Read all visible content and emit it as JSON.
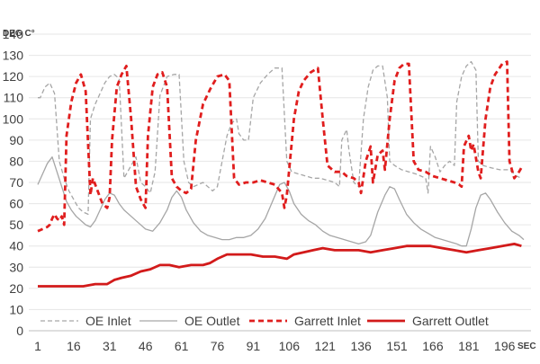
{
  "chart_data": {
    "type": "line",
    "title": "",
    "ylabel": "DEG C°",
    "xlabel": "SEC",
    "ylim": [
      0,
      140
    ],
    "yticks": [
      0,
      10,
      20,
      30,
      40,
      50,
      60,
      70,
      80,
      90,
      100,
      110,
      120,
      130,
      140
    ],
    "xlim": [
      1,
      207
    ],
    "xticks": [
      1,
      16,
      31,
      46,
      61,
      76,
      91,
      106,
      121,
      136,
      151,
      166,
      181,
      196
    ],
    "grid": true,
    "legend": "bottom",
    "series": [
      {
        "name": "OE Inlet",
        "color": "#a6a6a6",
        "dash": "dashed",
        "width": 1.3,
        "points": [
          [
            1,
            110
          ],
          [
            2,
            110
          ],
          [
            4,
            115
          ],
          [
            6,
            117
          ],
          [
            8,
            112
          ],
          [
            10,
            80
          ],
          [
            12,
            72
          ],
          [
            14,
            66
          ],
          [
            16,
            62
          ],
          [
            18,
            58
          ],
          [
            20,
            56
          ],
          [
            22,
            55
          ],
          [
            23,
            100
          ],
          [
            25,
            107
          ],
          [
            27,
            112
          ],
          [
            29,
            117
          ],
          [
            31,
            120
          ],
          [
            33,
            121
          ],
          [
            35,
            119
          ],
          [
            37,
            72
          ],
          [
            40,
            78
          ],
          [
            42,
            82
          ],
          [
            44,
            70
          ],
          [
            46,
            68
          ],
          [
            48,
            65
          ],
          [
            50,
            75
          ],
          [
            52,
            111
          ],
          [
            55,
            120
          ],
          [
            58,
            121
          ],
          [
            60,
            121
          ],
          [
            62,
            80
          ],
          [
            64,
            70
          ],
          [
            66,
            68
          ],
          [
            68,
            69
          ],
          [
            70,
            70
          ],
          [
            72,
            68
          ],
          [
            74,
            66
          ],
          [
            76,
            68
          ],
          [
            78,
            80
          ],
          [
            80,
            92
          ],
          [
            82,
            98
          ],
          [
            84,
            100
          ],
          [
            85,
            93
          ],
          [
            87,
            90
          ],
          [
            89,
            90
          ],
          [
            91,
            110
          ],
          [
            94,
            117
          ],
          [
            97,
            121
          ],
          [
            100,
            124
          ],
          [
            103,
            124
          ],
          [
            105,
            80
          ],
          [
            107,
            75
          ],
          [
            110,
            74
          ],
          [
            113,
            73
          ],
          [
            116,
            72
          ],
          [
            119,
            72
          ],
          [
            122,
            71
          ],
          [
            125,
            70
          ],
          [
            127,
            68
          ],
          [
            128,
            90
          ],
          [
            130,
            95
          ],
          [
            131,
            85
          ],
          [
            133,
            70
          ],
          [
            135,
            68
          ],
          [
            137,
            100
          ],
          [
            139,
            115
          ],
          [
            141,
            123
          ],
          [
            143,
            125
          ],
          [
            145,
            125
          ],
          [
            147,
            110
          ],
          [
            148,
            80
          ],
          [
            150,
            78
          ],
          [
            153,
            76
          ],
          [
            156,
            75
          ],
          [
            159,
            74
          ],
          [
            161,
            73
          ],
          [
            163,
            72
          ],
          [
            164,
            65
          ],
          [
            165,
            87
          ],
          [
            167,
            82
          ],
          [
            169,
            75
          ],
          [
            171,
            78
          ],
          [
            173,
            80
          ],
          [
            175,
            78
          ],
          [
            176,
            108
          ],
          [
            178,
            120
          ],
          [
            180,
            125
          ],
          [
            182,
            127
          ],
          [
            184,
            123
          ],
          [
            185,
            80
          ],
          [
            187,
            78
          ],
          [
            190,
            77
          ],
          [
            194,
            76
          ],
          [
            198,
            76
          ],
          [
            201,
            73
          ],
          [
            203,
            72
          ]
        ]
      },
      {
        "name": "OE Outlet",
        "color": "#a6a6a6",
        "dash": "solid",
        "width": 1.3,
        "points": [
          [
            1,
            69
          ],
          [
            3,
            74
          ],
          [
            5,
            79
          ],
          [
            7,
            82
          ],
          [
            9,
            75
          ],
          [
            11,
            68
          ],
          [
            13,
            61
          ],
          [
            15,
            57
          ],
          [
            17,
            54
          ],
          [
            19,
            52
          ],
          [
            21,
            50
          ],
          [
            23,
            49
          ],
          [
            25,
            52
          ],
          [
            27,
            57
          ],
          [
            29,
            62
          ],
          [
            31,
            65
          ],
          [
            33,
            64
          ],
          [
            35,
            60
          ],
          [
            37,
            57
          ],
          [
            40,
            54
          ],
          [
            43,
            51
          ],
          [
            46,
            48
          ],
          [
            49,
            47
          ],
          [
            52,
            51
          ],
          [
            55,
            57
          ],
          [
            57,
            63
          ],
          [
            59,
            66
          ],
          [
            61,
            63
          ],
          [
            63,
            57
          ],
          [
            66,
            51
          ],
          [
            69,
            47
          ],
          [
            72,
            45
          ],
          [
            75,
            44
          ],
          [
            78,
            43
          ],
          [
            81,
            43
          ],
          [
            84,
            44
          ],
          [
            87,
            44
          ],
          [
            90,
            45
          ],
          [
            93,
            48
          ],
          [
            96,
            53
          ],
          [
            99,
            61
          ],
          [
            102,
            69
          ],
          [
            104,
            70
          ],
          [
            106,
            66
          ],
          [
            108,
            60
          ],
          [
            111,
            55
          ],
          [
            114,
            52
          ],
          [
            117,
            50
          ],
          [
            120,
            47
          ],
          [
            123,
            45
          ],
          [
            126,
            44
          ],
          [
            129,
            43
          ],
          [
            132,
            42
          ],
          [
            135,
            41
          ],
          [
            138,
            42
          ],
          [
            140,
            45
          ],
          [
            143,
            56
          ],
          [
            146,
            64
          ],
          [
            148,
            68
          ],
          [
            150,
            67
          ],
          [
            152,
            62
          ],
          [
            155,
            55
          ],
          [
            158,
            51
          ],
          [
            161,
            48
          ],
          [
            164,
            46
          ],
          [
            167,
            44
          ],
          [
            170,
            43
          ],
          [
            173,
            42
          ],
          [
            176,
            41
          ],
          [
            178,
            40
          ],
          [
            180,
            40
          ],
          [
            182,
            48
          ],
          [
            184,
            58
          ],
          [
            186,
            64
          ],
          [
            188,
            65
          ],
          [
            190,
            62
          ],
          [
            193,
            56
          ],
          [
            196,
            51
          ],
          [
            199,
            47
          ],
          [
            202,
            45
          ],
          [
            204,
            43
          ]
        ]
      },
      {
        "name": "Garrett Inlet",
        "color": "#e01e1e",
        "dash": "dashed",
        "width": 2.8,
        "points": [
          [
            1,
            47
          ],
          [
            3,
            48
          ],
          [
            5,
            49
          ],
          [
            6,
            50
          ],
          [
            7,
            53
          ],
          [
            8,
            55
          ],
          [
            9,
            53
          ],
          [
            10,
            52
          ],
          [
            11,
            54
          ],
          [
            12,
            50
          ],
          [
            13,
            92
          ],
          [
            15,
            108
          ],
          [
            17,
            117
          ],
          [
            19,
            121
          ],
          [
            21,
            113
          ],
          [
            23,
            64
          ],
          [
            24,
            72
          ],
          [
            26,
            66
          ],
          [
            28,
            60
          ],
          [
            30,
            58
          ],
          [
            31,
            63
          ],
          [
            32,
            90
          ],
          [
            34,
            115
          ],
          [
            36,
            121
          ],
          [
            38,
            125
          ],
          [
            40,
            100
          ],
          [
            42,
            68
          ],
          [
            44,
            62
          ],
          [
            46,
            58
          ],
          [
            47,
            92
          ],
          [
            49,
            115
          ],
          [
            51,
            121
          ],
          [
            53,
            122
          ],
          [
            55,
            115
          ],
          [
            57,
            72
          ],
          [
            59,
            68
          ],
          [
            61,
            66
          ],
          [
            63,
            65
          ],
          [
            65,
            67
          ],
          [
            67,
            90
          ],
          [
            70,
            107
          ],
          [
            73,
            114
          ],
          [
            76,
            120
          ],
          [
            79,
            121
          ],
          [
            81,
            118
          ],
          [
            83,
            72
          ],
          [
            85,
            69
          ],
          [
            88,
            70
          ],
          [
            91,
            70
          ],
          [
            94,
            71
          ],
          [
            97,
            70
          ],
          [
            100,
            69
          ],
          [
            103,
            65
          ],
          [
            104,
            58
          ],
          [
            105,
            64
          ],
          [
            106,
            76
          ],
          [
            108,
            100
          ],
          [
            110,
            113
          ],
          [
            112,
            118
          ],
          [
            115,
            122
          ],
          [
            118,
            124
          ],
          [
            120,
            100
          ],
          [
            122,
            78
          ],
          [
            125,
            75
          ],
          [
            128,
            75
          ],
          [
            130,
            73
          ],
          [
            133,
            72
          ],
          [
            135,
            70
          ],
          [
            136,
            65
          ],
          [
            138,
            80
          ],
          [
            140,
            87
          ],
          [
            141,
            70
          ],
          [
            143,
            83
          ],
          [
            145,
            85
          ],
          [
            146,
            76
          ],
          [
            148,
            100
          ],
          [
            150,
            118
          ],
          [
            152,
            124
          ],
          [
            154,
            126
          ],
          [
            156,
            126
          ],
          [
            158,
            80
          ],
          [
            160,
            76
          ],
          [
            163,
            75
          ],
          [
            166,
            73
          ],
          [
            169,
            72
          ],
          [
            172,
            71
          ],
          [
            175,
            70
          ],
          [
            177,
            69
          ],
          [
            178,
            68
          ],
          [
            179,
            87
          ],
          [
            181,
            92
          ],
          [
            182,
            85
          ],
          [
            183,
            88
          ],
          [
            185,
            75
          ],
          [
            186,
            72
          ],
          [
            188,
            100
          ],
          [
            190,
            115
          ],
          [
            192,
            121
          ],
          [
            195,
            126
          ],
          [
            197,
            127
          ],
          [
            198,
            80
          ],
          [
            200,
            72
          ],
          [
            202,
            75
          ],
          [
            203,
            77
          ]
        ]
      },
      {
        "name": "Garrett Outlet",
        "color": "#d21a1a",
        "dash": "solid",
        "width": 2.8,
        "points": [
          [
            1,
            21
          ],
          [
            10,
            21
          ],
          [
            20,
            21
          ],
          [
            25,
            22
          ],
          [
            30,
            22
          ],
          [
            33,
            24
          ],
          [
            36,
            25
          ],
          [
            40,
            26
          ],
          [
            44,
            28
          ],
          [
            48,
            29
          ],
          [
            52,
            31
          ],
          [
            56,
            31
          ],
          [
            60,
            30
          ],
          [
            65,
            31
          ],
          [
            70,
            31
          ],
          [
            73,
            32
          ],
          [
            76,
            34
          ],
          [
            80,
            36
          ],
          [
            85,
            36
          ],
          [
            90,
            36
          ],
          [
            95,
            35
          ],
          [
            100,
            35
          ],
          [
            105,
            34
          ],
          [
            108,
            36
          ],
          [
            112,
            37
          ],
          [
            116,
            38
          ],
          [
            120,
            39
          ],
          [
            125,
            38
          ],
          [
            130,
            38
          ],
          [
            135,
            38
          ],
          [
            140,
            37
          ],
          [
            145,
            38
          ],
          [
            150,
            39
          ],
          [
            155,
            40
          ],
          [
            160,
            40
          ],
          [
            165,
            40
          ],
          [
            170,
            39
          ],
          [
            175,
            38
          ],
          [
            180,
            37
          ],
          [
            185,
            38
          ],
          [
            190,
            39
          ],
          [
            195,
            40
          ],
          [
            200,
            41
          ],
          [
            203,
            40
          ]
        ]
      }
    ]
  }
}
